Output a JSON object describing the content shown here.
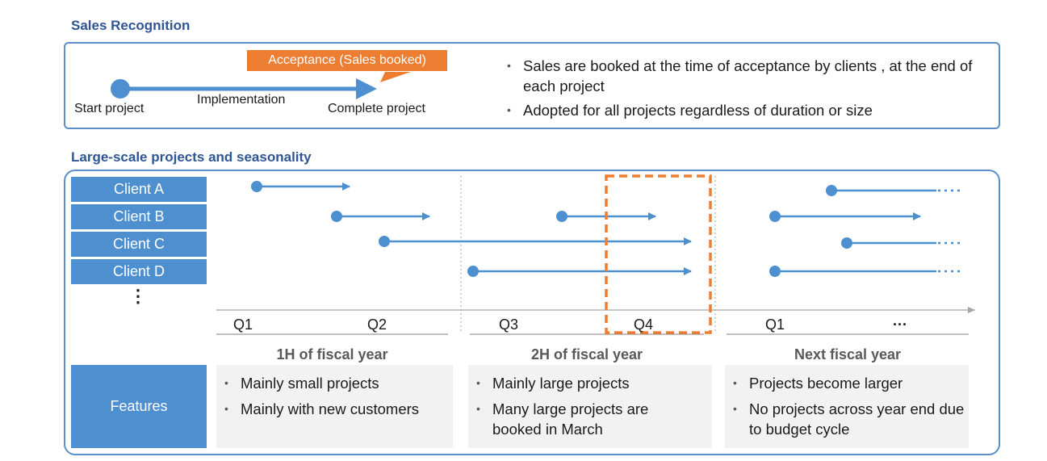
{
  "sales_recognition": {
    "title": "Sales Recognition",
    "acceptance_label": "Acceptance (Sales booked)",
    "start_label": "Start project",
    "implementation_label": "Implementation",
    "complete_label": "Complete project",
    "bullets": [
      "Sales are booked at the time of acceptance by clients , at the end of each project",
      "Adopted for all projects regardless of duration or size"
    ]
  },
  "seasonality": {
    "title": "Large-scale projects and seasonality",
    "clients": [
      "Client A",
      "Client B",
      "Client C",
      "Client D"
    ],
    "more_clients": "⋮",
    "quarters": [
      "Q1",
      "Q2",
      "Q3",
      "Q4",
      "Q1",
      "···"
    ],
    "periods": [
      "1H of fiscal year",
      "2H of fiscal year",
      "Next fiscal year"
    ],
    "features_label": "Features",
    "features": [
      [
        "Mainly small projects",
        "Mainly with new customers"
      ],
      [
        "Mainly large projects",
        "Many large projects are booked in March"
      ],
      [
        "Projects become larger",
        "No projects across year end due to budget cycle"
      ]
    ]
  },
  "colors": {
    "accent_blue": "#4d8fcf",
    "title_blue": "#2f5597",
    "highlight_orange": "#ed7d31",
    "panel_gray": "#f2f2f2"
  }
}
